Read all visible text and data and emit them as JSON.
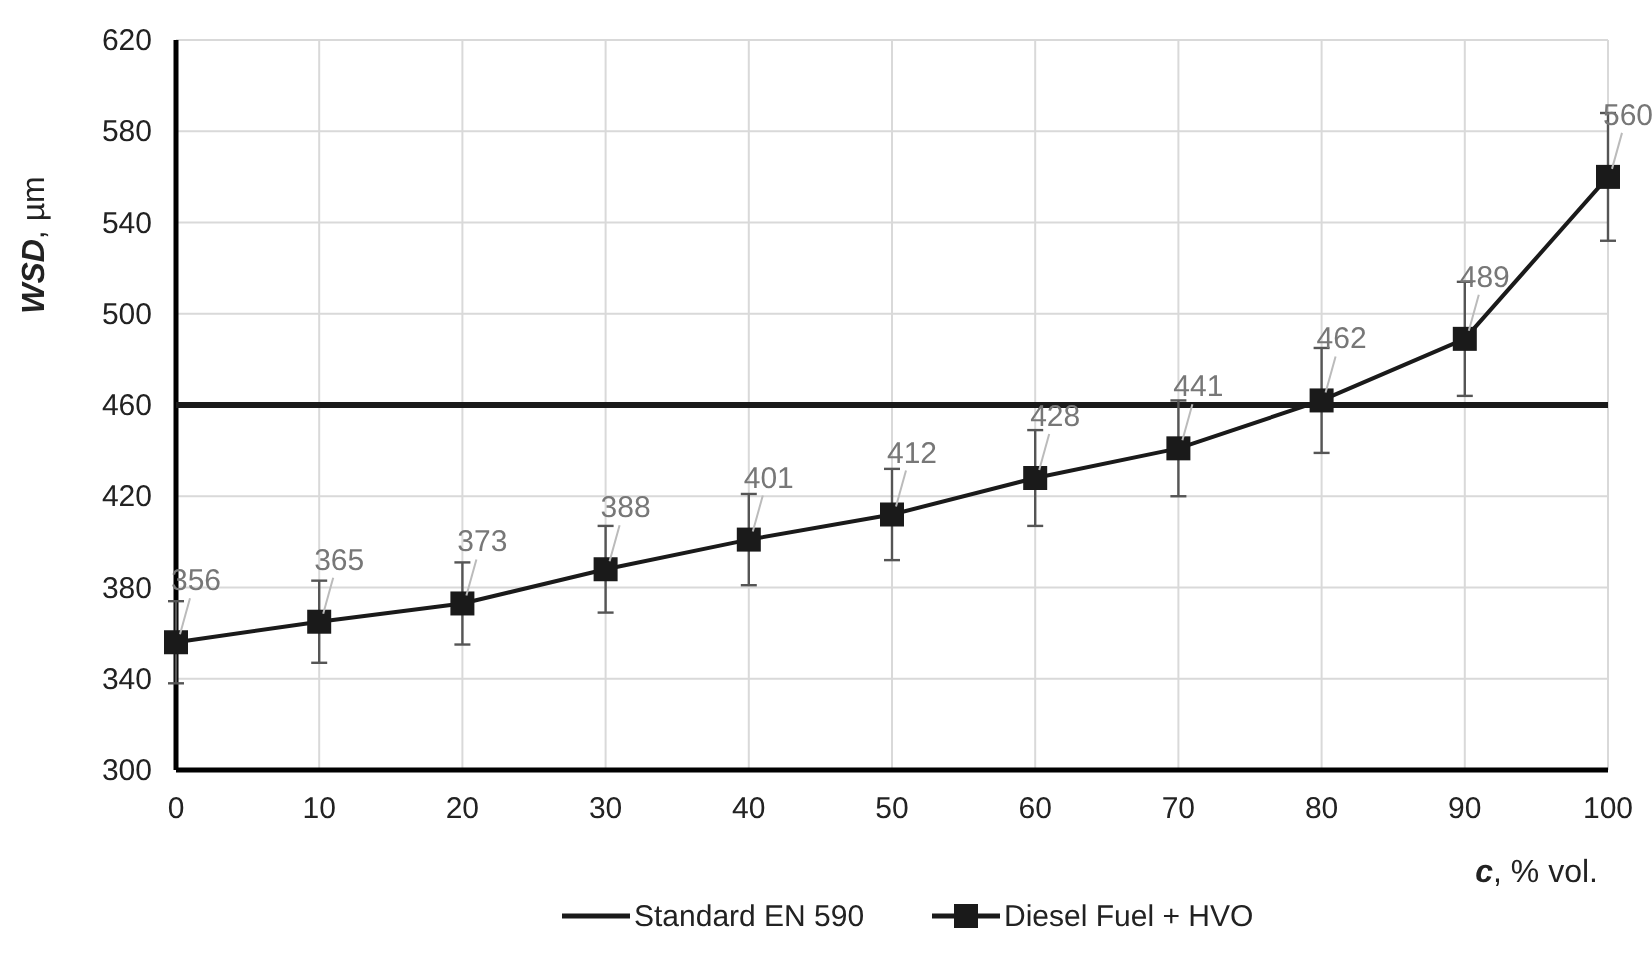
{
  "chart_data": {
    "type": "line",
    "xlabel": "c, % vol.",
    "ylabel": "WSD, µm",
    "xlim": [
      0,
      100
    ],
    "xticks": [
      0,
      10,
      20,
      30,
      40,
      50,
      60,
      70,
      80,
      90,
      100
    ],
    "ylim": [
      300,
      620
    ],
    "yticks": [
      300,
      340,
      380,
      420,
      460,
      500,
      540,
      580,
      620
    ],
    "grid": true,
    "legend": "bottom",
    "series": [
      {
        "name": "Standard EN 590",
        "color": "#1a1a1a",
        "x": [
          0,
          100
        ],
        "values": [
          460,
          460
        ],
        "marker": "none"
      },
      {
        "name": "Diesel Fuel + HVO",
        "color": "#1a1a1a",
        "x": [
          0,
          10,
          20,
          30,
          40,
          50,
          60,
          70,
          80,
          90,
          100
        ],
        "values": [
          356,
          365,
          373,
          388,
          401,
          412,
          428,
          441,
          462,
          489,
          560
        ],
        "marker": "square",
        "errors": [
          18,
          18,
          18,
          19,
          20,
          20,
          21,
          21,
          23,
          25,
          28
        ],
        "value_labels": [
          "356",
          "365",
          "373",
          "388",
          "401",
          "412",
          "428",
          "441",
          "462",
          "489",
          "560"
        ]
      }
    ]
  }
}
